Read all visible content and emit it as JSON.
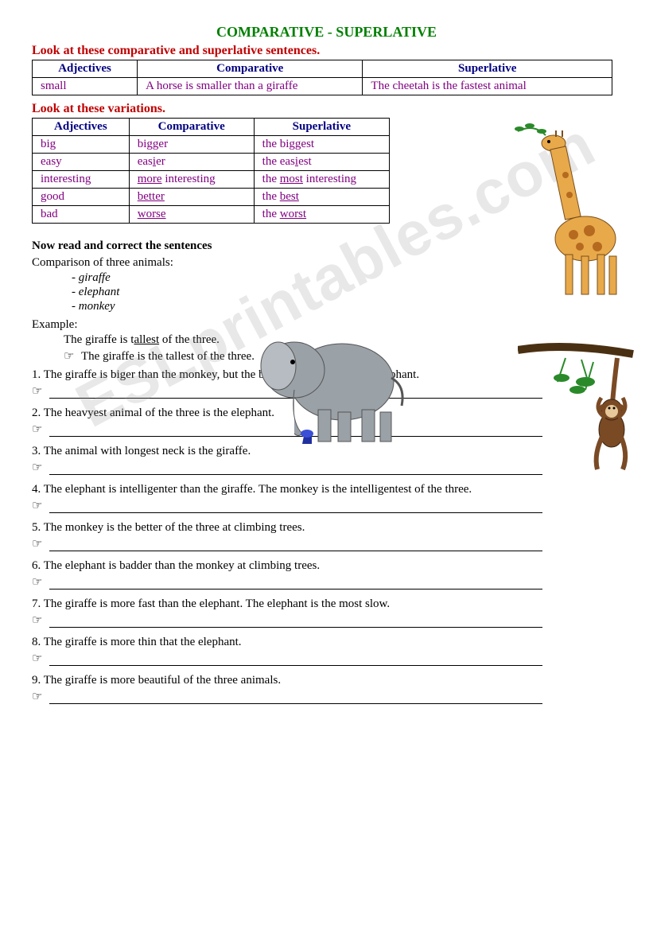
{
  "title": "COMPARATIVE - SUPERLATIVE",
  "section1_heading": "Look at these comparative and superlative sentences.",
  "table1": {
    "headers": [
      "Adjectives",
      "Comparative",
      "Superlative"
    ],
    "rows": [
      [
        "small",
        "A horse is smaller than a giraffe",
        "The cheetah is the fastest animal"
      ]
    ]
  },
  "section2_heading": "Look at these variations.",
  "table2": {
    "headers": [
      "Adjectives",
      "Comparative",
      "Superlative"
    ],
    "rows": [
      {
        "adj": "big",
        "comp_pre": "bi",
        "comp_u": "gg",
        "comp_post": "er",
        "sup_pre": "the bi",
        "sup_u": "gg",
        "sup_post": "est"
      },
      {
        "adj": "easy",
        "comp_pre": "eas",
        "comp_u": "i",
        "comp_post": "er",
        "sup_pre": "the eas",
        "sup_u": "i",
        "sup_post": "est"
      },
      {
        "adj": "interesting",
        "comp_pre": "",
        "comp_u": "more",
        "comp_post": " interesting",
        "sup_pre": "the ",
        "sup_u": "most",
        "sup_post": " interesting"
      },
      {
        "adj": "good",
        "comp_pre": "",
        "comp_u": "better",
        "comp_post": "",
        "sup_pre": "the ",
        "sup_u": "best",
        "sup_post": ""
      },
      {
        "adj": "bad",
        "comp_pre": "",
        "comp_u": "worse",
        "comp_post": "",
        "sup_pre": "the ",
        "sup_u": "worst",
        "sup_post": ""
      }
    ]
  },
  "instruction": "Now read and correct the sentences",
  "comparison_intro": "Comparison of three animals:",
  "animals": [
    "- giraffe",
    "- elephant",
    "- monkey"
  ],
  "example_label": "Example:",
  "example_sentence_pre": "The giraffe is t",
  "example_sentence_u": "allest",
  "example_sentence_post": " of the three.",
  "example_answer": "The giraffe is the tallest of the three.",
  "pointer_glyph": "☞",
  "questions": [
    "1. The giraffe is biger than the monkey, but the bigest of the three is the elephant.",
    "2. The heavyest animal of the three is the elephant.",
    "3. The animal with longest neck is the giraffe.",
    "4. The elephant is intelligenter than the giraffe. The monkey is the intelligentest of the three.",
    "5. The monkey is the better of the three at climbing trees.",
    "6. The elephant is badder than the monkey at climbing trees.",
    "7. The giraffe is more fast than the elephant. The elephant is the most slow.",
    "8. The giraffe is more thin that the elephant.",
    "9. The giraffe is more beautiful of the three animals."
  ],
  "watermark": "ESLprintables.com",
  "colors": {
    "title": "#008000",
    "heading": "#c00000",
    "th": "#000080",
    "td": "#800080",
    "giraffe_body": "#e8a94b",
    "giraffe_spot": "#b56a1f",
    "elephant": "#9aa1a7",
    "monkey": "#7a4a25",
    "leaf": "#2a8a2a"
  }
}
